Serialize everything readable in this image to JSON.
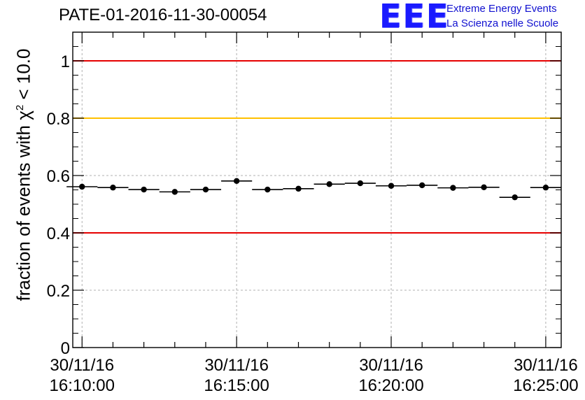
{
  "chart_data": {
    "type": "scatter",
    "title": "PATE-01-2016-11-30-00054",
    "ylabel_prefix": "fraction of events with",
    "ylabel_symbol": "χ",
    "ylabel_power": "2",
    "ylabel_suffix": "< 10.0",
    "ylim": [
      0,
      1.1
    ],
    "yticks": [
      0,
      0.2,
      0.4,
      0.6,
      0.8,
      1
    ],
    "ytick_labels": [
      "0",
      "0.2",
      "0.4",
      "0.6",
      "0.8",
      "1"
    ],
    "xlim": [
      -0.3,
      15.5
    ],
    "xticks_major": [
      0,
      5,
      10,
      15
    ],
    "xtick_labels": [
      {
        "date": "30/11/16",
        "time": "16:10:00"
      },
      {
        "date": "30/11/16",
        "time": "16:15:00"
      },
      {
        "date": "30/11/16",
        "time": "16:20:00"
      },
      {
        "date": "30/11/16",
        "time": "16:25:00"
      }
    ],
    "x_unit": "minutes after 16:10:00",
    "bin_width_minutes": 1,
    "grid": true,
    "reference_lines": [
      {
        "value": 1.0,
        "color": "#e60000"
      },
      {
        "value": 0.8,
        "color": "#ffc000"
      },
      {
        "value": 0.4,
        "color": "#e60000"
      }
    ],
    "points": [
      {
        "x": 0,
        "y": 0.561
      },
      {
        "x": 1,
        "y": 0.558
      },
      {
        "x": 2,
        "y": 0.551
      },
      {
        "x": 3,
        "y": 0.543
      },
      {
        "x": 4,
        "y": 0.551
      },
      {
        "x": 5,
        "y": 0.581
      },
      {
        "x": 6,
        "y": 0.551
      },
      {
        "x": 7,
        "y": 0.554
      },
      {
        "x": 8,
        "y": 0.57
      },
      {
        "x": 9,
        "y": 0.573
      },
      {
        "x": 10,
        "y": 0.564
      },
      {
        "x": 11,
        "y": 0.566
      },
      {
        "x": 12,
        "y": 0.557
      },
      {
        "x": 13,
        "y": 0.559
      },
      {
        "x": 14,
        "y": 0.524
      },
      {
        "x": 15,
        "y": 0.558
      }
    ],
    "marker_color": "#000000"
  },
  "logo": {
    "mark": "EEE",
    "line1": "Extreme Energy Events",
    "line2": "La Scienza nelle Scuole"
  }
}
